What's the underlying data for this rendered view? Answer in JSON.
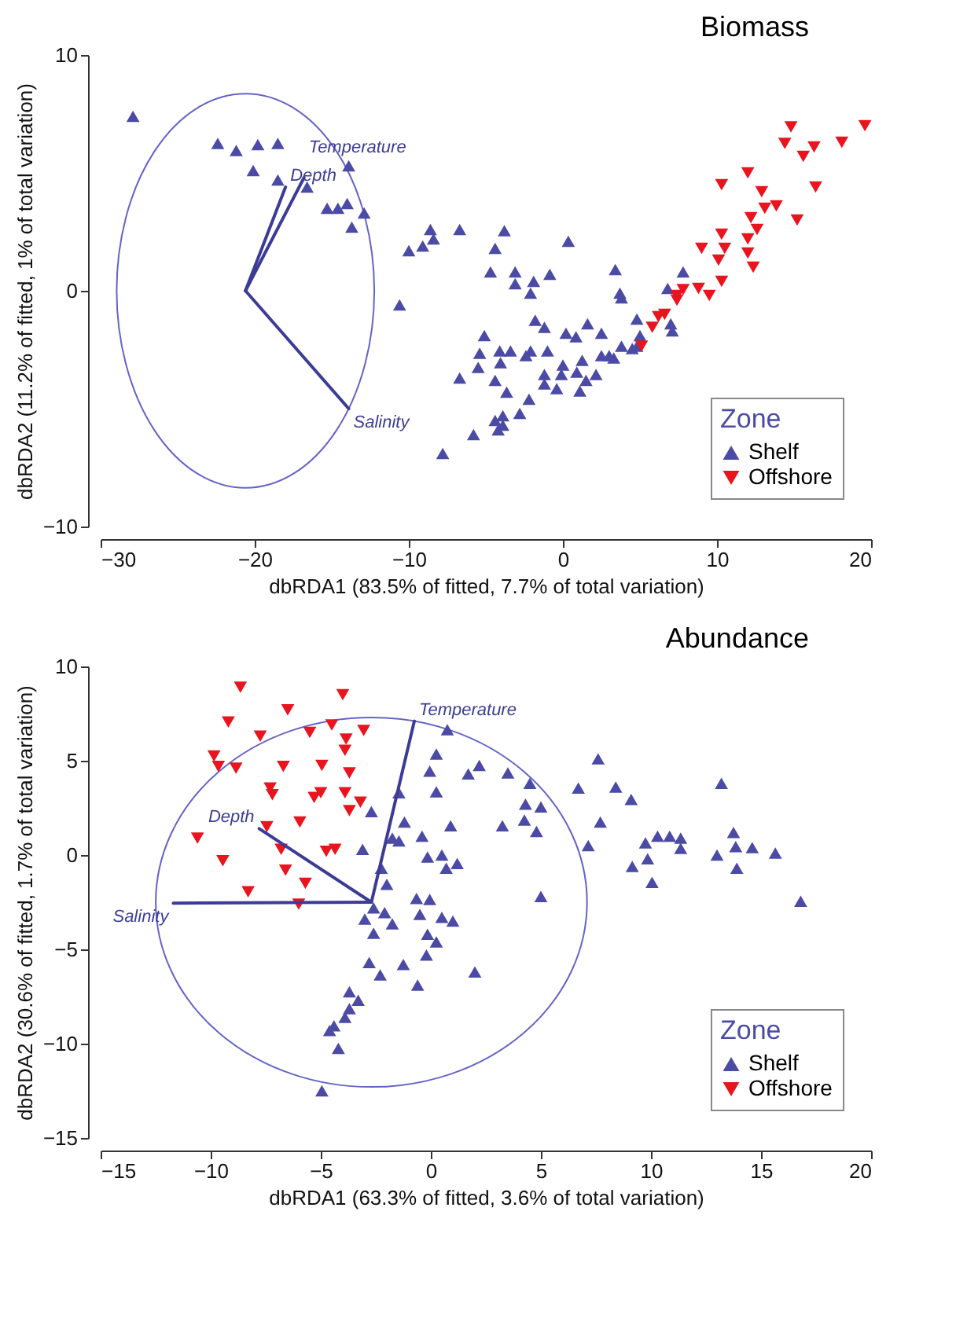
{
  "chart_data": [
    {
      "type": "scatter",
      "title": "Biomass",
      "xlabel": "dbRDA1 (83.5% of fitted, 7.7% of total variation)",
      "ylabel": "dbRDA2 (11.2% of fitted, 1% of total variation)",
      "xlim": [
        -30,
        20
      ],
      "ylim": [
        -10,
        10
      ],
      "xticks": [
        -30,
        -20,
        -10,
        0,
        10,
        20
      ],
      "yticks": [
        -10,
        0,
        10
      ],
      "legend": "bottom right",
      "legend_title": "Zone",
      "series": [
        {
          "name": "Shelf",
          "type": "scatter",
          "marker": "triangle",
          "color": "#4b4ba5",
          "x": [
            -27.9,
            -22.4,
            -21.2,
            -19.8,
            -18.5,
            -20.1,
            -18.5,
            -16.6,
            -13.9,
            -15.3,
            -14.6,
            -14.0,
            -12.9,
            -13.7,
            -8.6,
            -8.4,
            -9.1,
            -10.0,
            -6.7,
            -4.4,
            -4.7,
            -10.6,
            -5.1,
            -5.4,
            -4.1,
            -5.5,
            -4.4,
            -6.7,
            -5.8,
            -7.8,
            -4.4,
            -4.2,
            -3.8,
            -3.1,
            -3.1,
            -1.9,
            -2.1,
            -0.85,
            0.35,
            3.4,
            3.7,
            3.8,
            6.8,
            7.8,
            7.0,
            7.1,
            4.8,
            5.0,
            4.8,
            4.5,
            3.8,
            3.3,
            3.0,
            2.5,
            2.5,
            1.6,
            0.85,
            0.2,
            1.25,
            0.9,
            1.5,
            1.1,
            2.15,
            0,
            -0.1,
            -0.4,
            -1.2,
            -1.2,
            -1.0,
            -2.1,
            -2.4,
            -1.2,
            -1.8,
            -2.2,
            -2.8,
            -3.65,
            -3.9,
            -3.9,
            -3.4,
            -4.05
          ],
          "values": [
            7.4,
            6.25,
            5.95,
            6.2,
            6.25,
            5.1,
            4.7,
            4.4,
            5.3,
            3.5,
            3.5,
            3.7,
            3.3,
            2.7,
            2.6,
            2.2,
            1.9,
            1.7,
            2.6,
            1.8,
            0.8,
            -0.6,
            -1.9,
            -2.65,
            -2.55,
            -3.25,
            -3.8,
            -3.7,
            -6.1,
            -6.9,
            -5.5,
            -5.9,
            2.55,
            0.8,
            0.3,
            0.4,
            -0.1,
            0.7,
            2.1,
            0.9,
            -0.1,
            -0.3,
            0.1,
            0.8,
            -1.4,
            -1.7,
            -1.2,
            -1.9,
            -2.35,
            -2.45,
            -2.35,
            -2.85,
            -2.75,
            -2.75,
            -1.8,
            -1.4,
            -1.95,
            -1.8,
            -2.95,
            -3.45,
            -3.8,
            -4.25,
            -3.55,
            -3.15,
            -3.55,
            -4.15,
            -3.55,
            -3.95,
            -2.55,
            -2.55,
            -2.75,
            -1.55,
            -1.25,
            -4.6,
            -5.2,
            -4.3,
            -5.3,
            -5.7,
            -2.55,
            -3.05
          ]
        },
        {
          "name": "Offshore",
          "type": "scatter",
          "marker": "triangle-down",
          "color": "#e8141e",
          "x": [
            19.6,
            18.1,
            14.8,
            14.4,
            16.3,
            15.6,
            16.4,
            15.2,
            12.0,
            10.3,
            12.9,
            13.1,
            13.85,
            12.2,
            12.6,
            12.0,
            12.0,
            12.35,
            10.3,
            10.5,
            10.1,
            10.3,
            9.0,
            8.8,
            9.5,
            7.8,
            7.4,
            7.4,
            6.6,
            6.2,
            5.8,
            5.1
          ],
          "values": [
            7.0,
            6.3,
            6.95,
            6.25,
            6.1,
            5.7,
            4.4,
            3.0,
            5.0,
            4.5,
            4.2,
            3.5,
            3.6,
            3.1,
            2.6,
            2.2,
            1.6,
            1.0,
            2.4,
            1.8,
            1.3,
            0.4,
            1.8,
            0.1,
            -0.2,
            0.05,
            -0.2,
            -0.4,
            -1.0,
            -1.1,
            -1.55,
            -2.35
          ]
        },
        {
          "name": "Depth",
          "type": "line",
          "color": "#3c3c96",
          "x": [
            -20.6,
            -18.0
          ],
          "values": [
            0,
            4.4
          ]
        },
        {
          "name": "Temperature",
          "type": "line",
          "color": "#3c3c96",
          "x": [
            -20.6,
            -16.8
          ],
          "values": [
            0,
            4.8
          ]
        },
        {
          "name": "Salinity",
          "type": "line",
          "color": "#3c3c96",
          "x": [
            -20.6,
            -13.9
          ],
          "values": [
            0,
            -5.0
          ]
        }
      ]
    },
    {
      "type": "scatter",
      "title": "Abundance",
      "xlabel": "dbRDA1 (63.3% of fitted, 3.6% of total variation)",
      "ylabel": "dbRDA2 (30.6% of fitted, 1.7% of total variation)",
      "xlim": [
        -15,
        20
      ],
      "ylim": [
        -15,
        10
      ],
      "xticks": [
        -15,
        -10,
        -5,
        0,
        5,
        10,
        15,
        20
      ],
      "yticks": [
        -15,
        -10,
        -5,
        0,
        5,
        10
      ],
      "legend": "bottom right",
      "legend_title": "Zone",
      "series": [
        {
          "name": "Shelf",
          "type": "scatter",
          "marker": "triangle",
          "color": "#4b4ba5",
          "x": [
            0.75,
            0.25,
            -0.05,
            1.7,
            2.2,
            3.5,
            0.25,
            -1.45,
            -2.7,
            -1.2,
            0.9,
            3.25,
            -1.75,
            -1.45,
            -0.4,
            -3.1,
            -0.15,
            0.5,
            1.2,
            0.7,
            -2.25,
            -2.0,
            -2.6,
            -2.1,
            -3.0,
            -1.75,
            -2.6,
            -0.65,
            -0.05,
            -0.5,
            0.5,
            1.0,
            -0.15,
            0.25,
            -0.2,
            -2.8,
            -2.3,
            -1.25,
            -0.6,
            2.0,
            -3.7,
            -3.3,
            -3.7,
            -3.9,
            -4.4,
            -4.6,
            -4.2,
            -4.95,
            7.6,
            4.5,
            6.7,
            8.4,
            9.1,
            13.2,
            4.3,
            5.0,
            4.25,
            4.8,
            7.7,
            7.15,
            9.75,
            10.3,
            10.85,
            11.35,
            11.35,
            9.85,
            9.15,
            10.05,
            13.75,
            13.85,
            14.6,
            13.0,
            15.65,
            13.9,
            16.8,
            5.0
          ],
          "values": [
            6.65,
            5.35,
            4.45,
            4.3,
            4.75,
            4.35,
            3.35,
            3.3,
            2.3,
            1.75,
            1.55,
            1.55,
            0.9,
            0.75,
            1.0,
            0.3,
            -0.1,
            0.0,
            -0.45,
            -0.7,
            -0.7,
            -1.55,
            -2.8,
            -3.05,
            -3.4,
            -3.65,
            -4.15,
            -2.3,
            -2.35,
            -3.15,
            -3.3,
            -3.5,
            -4.2,
            -4.6,
            -5.3,
            -5.7,
            -6.35,
            -5.8,
            -6.9,
            -6.2,
            -7.25,
            -7.7,
            -8.15,
            -8.6,
            -9.05,
            -9.3,
            -10.25,
            -12.5,
            5.1,
            3.8,
            3.55,
            3.6,
            2.95,
            3.8,
            2.7,
            2.55,
            1.85,
            1.25,
            1.75,
            0.5,
            0.65,
            1.0,
            1.0,
            0.9,
            0.35,
            -0.2,
            -0.6,
            -1.45,
            1.2,
            0.45,
            0.4,
            0.0,
            0.1,
            -0.7,
            -2.45,
            -2.2
          ]
        },
        {
          "name": "Offshore",
          "type": "scatter",
          "marker": "triangle-down",
          "color": "#e8141e",
          "x": [
            -8.65,
            -4.0,
            -6.5,
            -9.2,
            -7.75,
            -5.5,
            -4.5,
            -3.85,
            -3.05,
            -3.9,
            -9.85,
            -9.65,
            -8.85,
            -6.7,
            -4.95,
            -3.7,
            -7.3,
            -7.2,
            -5.0,
            -5.3,
            -3.9,
            -3.2,
            -3.7,
            -7.45,
            -5.95,
            -10.6,
            -6.8,
            -4.75,
            -4.35,
            -9.45,
            -6.6,
            -5.7,
            -8.3,
            -6.0
          ],
          "values": [
            8.9,
            8.5,
            7.7,
            7.05,
            6.3,
            6.5,
            6.9,
            6.15,
            6.6,
            5.55,
            5.25,
            4.7,
            4.6,
            4.7,
            4.75,
            4.35,
            3.55,
            3.2,
            3.3,
            3.05,
            3.3,
            2.8,
            2.35,
            1.5,
            1.75,
            0.9,
            0.3,
            0.2,
            0.3,
            -0.3,
            -0.8,
            -1.5,
            -1.95,
            -2.6
          ]
        },
        {
          "name": "Depth",
          "type": "line",
          "color": "#3c3c96",
          "x": [
            -2.7,
            -7.8
          ],
          "values": [
            -2.5,
            1.4
          ]
        },
        {
          "name": "Temperature",
          "type": "line",
          "color": "#3c3c96",
          "x": [
            -2.7,
            -0.75
          ],
          "values": [
            -2.5,
            7.1
          ]
        },
        {
          "name": "Salinity",
          "type": "line",
          "color": "#3c3c96",
          "x": [
            -2.7,
            -11.7
          ],
          "values": [
            -2.5,
            -2.55
          ]
        }
      ]
    }
  ]
}
